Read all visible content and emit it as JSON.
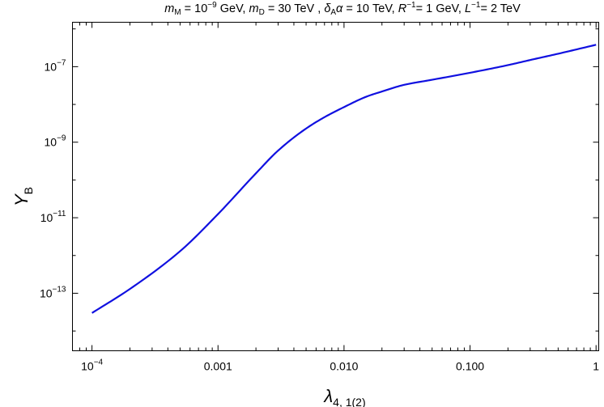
{
  "chart_data": {
    "type": "line",
    "title": "m_M = 10^−9 GeV, m_D = 30 TeV , δ_A α = 10 TeV, R^−1 = 1 GeV, L^−1 = 2 TeV",
    "title_parts": {
      "p1_sym": "m",
      "p1_sub": "M",
      "p1_eq": " = 10",
      "p1_sup": "−9",
      "p1_unit": " GeV, ",
      "p2_sym": "m",
      "p2_sub": "D",
      "p2_rest": " = 30 TeV , ",
      "p3_sym": "δ",
      "p3_sub": "A",
      "p3_sym2": "α",
      "p3_rest": " = 10 TeV, ",
      "p4_sym": "R",
      "p4_sup": "−1",
      "p4_rest": "= 1 GeV, ",
      "p5_sym": "L",
      "p5_sup": "−1",
      "p5_rest": "= 2 TeV"
    },
    "xlabel": "λ_{4,1(2)}",
    "xlabel_parts": {
      "sym": "λ",
      "sub": "4, 1(2)"
    },
    "ylabel": "Y_B",
    "ylabel_parts": {
      "sym": "Y",
      "sub": "B"
    },
    "xscale": "log",
    "yscale": "log",
    "xlim": [
      7e-05,
      1.05
    ],
    "ylim": [
      3e-15,
      1.5e-06
    ],
    "grid": false,
    "x_ticks": [
      {
        "value": 0.0001,
        "label_base": "10",
        "label_exp": "−4"
      },
      {
        "value": 0.001,
        "label": "0.001"
      },
      {
        "value": 0.01,
        "label": "0.010"
      },
      {
        "value": 0.1,
        "label": "0.100"
      },
      {
        "value": 1,
        "label": "1"
      }
    ],
    "y_ticks": [
      {
        "value": 1e-13,
        "label_base": "10",
        "label_exp": "−13"
      },
      {
        "value": 1e-11,
        "label_base": "10",
        "label_exp": "−11"
      },
      {
        "value": 1e-09,
        "label_base": "10",
        "label_exp": "−9"
      },
      {
        "value": 1e-07,
        "label_base": "10",
        "label_exp": "−7"
      }
    ],
    "series": [
      {
        "color": "#1010e0",
        "x": [
          0.0001,
          0.0002,
          0.0005,
          0.001,
          0.002,
          0.003,
          0.005,
          0.007,
          0.01,
          0.015,
          0.02,
          0.03,
          0.05,
          0.1,
          0.2,
          0.3,
          0.5,
          1
        ],
        "y": [
          3e-14,
          1.3e-13,
          1.3e-12,
          1.25e-11,
          1.5e-10,
          6e-10,
          2.3e-09,
          4.6e-09,
          8.5e-09,
          1.6e-08,
          2.2e-08,
          3.3e-08,
          4.5e-08,
          6.9e-08,
          1.1e-07,
          1.5e-07,
          2.2e-07,
          3.8e-07
        ]
      }
    ]
  }
}
